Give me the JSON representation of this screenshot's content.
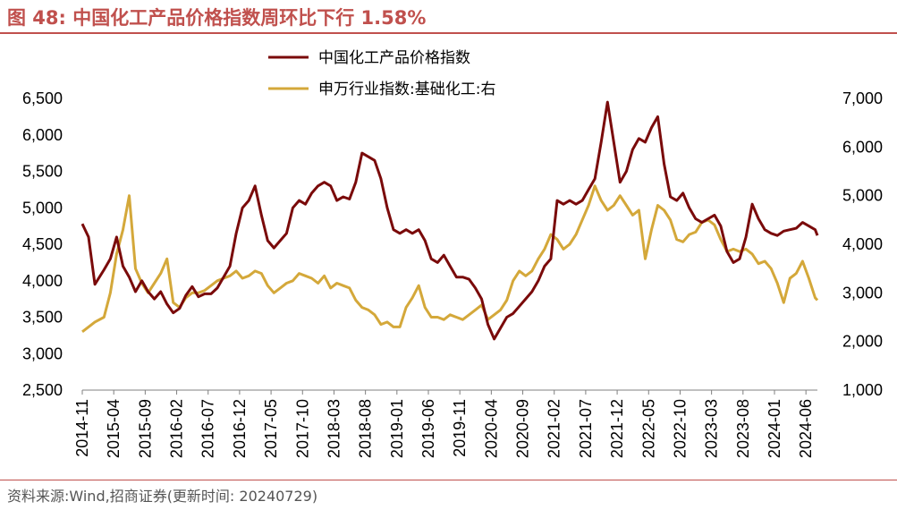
{
  "title": "图 48:  中国化工产品价格指数周环比下行 1.58%",
  "source": "资料来源:Wind,招商证券(更新时间: 20240729)",
  "colors": {
    "accent": "#c0504d",
    "series1": "#7a0a0a",
    "series2": "#d4a83a"
  },
  "chart_data": {
    "type": "line",
    "legend_position": "top-center",
    "grid": false,
    "x_ticks": [
      "2014-11",
      "2015-04",
      "2015-09",
      "2016-02",
      "2016-07",
      "2016-12",
      "2017-05",
      "2017-10",
      "2018-03",
      "2018-08",
      "2019-01",
      "2019-06",
      "2019-11",
      "2020-04",
      "2020-09",
      "2021-02",
      "2021-07",
      "2021-12",
      "2022-05",
      "2022-10",
      "2023-03",
      "2023-08",
      "2024-01",
      "2024-06"
    ],
    "y_left": {
      "ylim": [
        2500,
        6500
      ],
      "ticks": [
        "2,500",
        "3,000",
        "3,500",
        "4,000",
        "4,500",
        "5,000",
        "5,500",
        "6,000",
        "6,500"
      ]
    },
    "y_right": {
      "ylim": [
        1000,
        7000
      ],
      "ticks": [
        "1,000",
        "2,000",
        "3,000",
        "4,000",
        "5,000",
        "6,000",
        "7,000"
      ]
    },
    "series": [
      {
        "name": "中国化工产品价格指数",
        "axis": "left",
        "points": [
          [
            "2014-11-01",
            4780
          ],
          [
            "2014-12-01",
            4600
          ],
          [
            "2015-01-01",
            3950
          ],
          [
            "2015-02-15",
            4150
          ],
          [
            "2015-03-15",
            4300
          ],
          [
            "2015-04-15",
            4600
          ],
          [
            "2015-05-15",
            4200
          ],
          [
            "2015-06-15",
            4050
          ],
          [
            "2015-07-15",
            3850
          ],
          [
            "2015-08-15",
            4000
          ],
          [
            "2015-09-15",
            3850
          ],
          [
            "2015-10-15",
            3750
          ],
          [
            "2015-11-15",
            3850
          ],
          [
            "2015-12-15",
            3680
          ],
          [
            "2016-01-15",
            3560
          ],
          [
            "2016-02-15",
            3620
          ],
          [
            "2016-03-15",
            3800
          ],
          [
            "2016-04-15",
            3920
          ],
          [
            "2016-05-15",
            3780
          ],
          [
            "2016-06-15",
            3820
          ],
          [
            "2016-07-15",
            3820
          ],
          [
            "2016-08-15",
            3900
          ],
          [
            "2016-09-15",
            4050
          ],
          [
            "2016-10-15",
            4200
          ],
          [
            "2016-11-15",
            4650
          ],
          [
            "2016-12-15",
            5000
          ],
          [
            "2017-01-15",
            5100
          ],
          [
            "2017-02-15",
            5300
          ],
          [
            "2017-03-15",
            4900
          ],
          [
            "2017-04-15",
            4550
          ],
          [
            "2017-05-15",
            4450
          ],
          [
            "2017-06-15",
            4550
          ],
          [
            "2017-07-15",
            4650
          ],
          [
            "2017-08-15",
            5000
          ],
          [
            "2017-09-15",
            5100
          ],
          [
            "2017-10-15",
            5050
          ],
          [
            "2017-11-15",
            5200
          ],
          [
            "2017-12-15",
            5300
          ],
          [
            "2018-01-15",
            5350
          ],
          [
            "2018-02-15",
            5300
          ],
          [
            "2018-03-15",
            5100
          ],
          [
            "2018-04-15",
            5150
          ],
          [
            "2018-05-15",
            5120
          ],
          [
            "2018-06-15",
            5350
          ],
          [
            "2018-07-15",
            5750
          ],
          [
            "2018-08-15",
            5700
          ],
          [
            "2018-09-15",
            5650
          ],
          [
            "2018-10-15",
            5400
          ],
          [
            "2018-11-15",
            5000
          ],
          [
            "2018-12-15",
            4700
          ],
          [
            "2019-01-15",
            4650
          ],
          [
            "2019-02-15",
            4700
          ],
          [
            "2019-03-15",
            4650
          ],
          [
            "2019-04-15",
            4700
          ],
          [
            "2019-05-15",
            4550
          ],
          [
            "2019-06-15",
            4300
          ],
          [
            "2019-07-15",
            4250
          ],
          [
            "2019-08-15",
            4350
          ],
          [
            "2019-09-15",
            4200
          ],
          [
            "2019-10-15",
            4050
          ],
          [
            "2019-11-15",
            4050
          ],
          [
            "2019-12-15",
            4020
          ],
          [
            "2020-01-15",
            3900
          ],
          [
            "2020-02-15",
            3750
          ],
          [
            "2020-03-15",
            3400
          ],
          [
            "2020-04-15",
            3200
          ],
          [
            "2020-05-15",
            3350
          ],
          [
            "2020-06-15",
            3500
          ],
          [
            "2020-07-15",
            3550
          ],
          [
            "2020-08-15",
            3650
          ],
          [
            "2020-09-15",
            3750
          ],
          [
            "2020-10-15",
            3850
          ],
          [
            "2020-11-15",
            4000
          ],
          [
            "2020-12-15",
            4200
          ],
          [
            "2021-01-15",
            4300
          ],
          [
            "2021-02-15",
            5100
          ],
          [
            "2021-03-15",
            5050
          ],
          [
            "2021-04-15",
            5100
          ],
          [
            "2021-05-15",
            5050
          ],
          [
            "2021-06-15",
            5100
          ],
          [
            "2021-07-15",
            5250
          ],
          [
            "2021-08-15",
            5400
          ],
          [
            "2021-09-15",
            5900
          ],
          [
            "2021-10-15",
            6450
          ],
          [
            "2021-11-15",
            5900
          ],
          [
            "2021-12-15",
            5350
          ],
          [
            "2022-01-15",
            5500
          ],
          [
            "2022-02-15",
            5800
          ],
          [
            "2022-03-15",
            5950
          ],
          [
            "2022-04-15",
            5900
          ],
          [
            "2022-05-15",
            6100
          ],
          [
            "2022-06-15",
            6250
          ],
          [
            "2022-07-15",
            5600
          ],
          [
            "2022-08-15",
            5150
          ],
          [
            "2022-09-15",
            5100
          ],
          [
            "2022-10-15",
            5200
          ],
          [
            "2022-11-15",
            5000
          ],
          [
            "2022-12-15",
            4850
          ],
          [
            "2023-01-15",
            4800
          ],
          [
            "2023-02-15",
            4850
          ],
          [
            "2023-03-15",
            4900
          ],
          [
            "2023-04-15",
            4750
          ],
          [
            "2023-05-15",
            4400
          ],
          [
            "2023-06-15",
            4250
          ],
          [
            "2023-07-15",
            4300
          ],
          [
            "2023-08-15",
            4600
          ],
          [
            "2023-09-15",
            5050
          ],
          [
            "2023-10-15",
            4850
          ],
          [
            "2023-11-15",
            4700
          ],
          [
            "2023-12-15",
            4650
          ],
          [
            "2024-01-15",
            4620
          ],
          [
            "2024-02-15",
            4680
          ],
          [
            "2024-03-15",
            4700
          ],
          [
            "2024-04-15",
            4720
          ],
          [
            "2024-05-15",
            4800
          ],
          [
            "2024-06-15",
            4750
          ],
          [
            "2024-07-15",
            4700
          ],
          [
            "2024-07-26",
            4620
          ]
        ]
      },
      {
        "name": "申万行业指数:基础化工:右",
        "axis": "right",
        "points": [
          [
            "2014-11-01",
            2200
          ],
          [
            "2014-12-01",
            2300
          ],
          [
            "2015-01-01",
            2400
          ],
          [
            "2015-02-15",
            2500
          ],
          [
            "2015-03-15",
            3000
          ],
          [
            "2015-04-15",
            3800
          ],
          [
            "2015-05-15",
            4300
          ],
          [
            "2015-06-15",
            5000
          ],
          [
            "2015-07-15",
            3500
          ],
          [
            "2015-08-15",
            3200
          ],
          [
            "2015-09-15",
            3000
          ],
          [
            "2015-10-15",
            3200
          ],
          [
            "2015-11-15",
            3400
          ],
          [
            "2015-12-15",
            3700
          ],
          [
            "2016-01-15",
            2800
          ],
          [
            "2016-02-15",
            2700
          ],
          [
            "2016-03-15",
            2900
          ],
          [
            "2016-04-15",
            3000
          ],
          [
            "2016-05-15",
            3000
          ],
          [
            "2016-06-15",
            3050
          ],
          [
            "2016-07-15",
            3150
          ],
          [
            "2016-08-15",
            3250
          ],
          [
            "2016-09-15",
            3300
          ],
          [
            "2016-10-15",
            3350
          ],
          [
            "2016-11-15",
            3450
          ],
          [
            "2016-12-15",
            3300
          ],
          [
            "2017-01-15",
            3350
          ],
          [
            "2017-02-15",
            3450
          ],
          [
            "2017-03-15",
            3400
          ],
          [
            "2017-04-15",
            3150
          ],
          [
            "2017-05-15",
            3000
          ],
          [
            "2017-06-15",
            3100
          ],
          [
            "2017-07-15",
            3200
          ],
          [
            "2017-08-15",
            3250
          ],
          [
            "2017-09-15",
            3400
          ],
          [
            "2017-10-15",
            3350
          ],
          [
            "2017-11-15",
            3300
          ],
          [
            "2017-12-15",
            3200
          ],
          [
            "2018-01-15",
            3350
          ],
          [
            "2018-02-15",
            3100
          ],
          [
            "2018-03-15",
            3200
          ],
          [
            "2018-04-15",
            3150
          ],
          [
            "2018-05-15",
            3100
          ],
          [
            "2018-06-15",
            2850
          ],
          [
            "2018-07-15",
            2700
          ],
          [
            "2018-08-15",
            2650
          ],
          [
            "2018-09-15",
            2550
          ],
          [
            "2018-10-15",
            2350
          ],
          [
            "2018-11-15",
            2400
          ],
          [
            "2018-12-15",
            2300
          ],
          [
            "2019-01-15",
            2300
          ],
          [
            "2019-02-15",
            2700
          ],
          [
            "2019-03-15",
            2900
          ],
          [
            "2019-04-15",
            3150
          ],
          [
            "2019-05-15",
            2700
          ],
          [
            "2019-06-15",
            2500
          ],
          [
            "2019-07-15",
            2500
          ],
          [
            "2019-08-15",
            2450
          ],
          [
            "2019-09-15",
            2550
          ],
          [
            "2019-10-15",
            2500
          ],
          [
            "2019-11-15",
            2450
          ],
          [
            "2019-12-15",
            2550
          ],
          [
            "2020-01-15",
            2650
          ],
          [
            "2020-02-15",
            2750
          ],
          [
            "2020-03-15",
            2450
          ],
          [
            "2020-04-15",
            2550
          ],
          [
            "2020-05-15",
            2650
          ],
          [
            "2020-06-15",
            2850
          ],
          [
            "2020-07-15",
            3250
          ],
          [
            "2020-08-15",
            3450
          ],
          [
            "2020-09-15",
            3350
          ],
          [
            "2020-10-15",
            3450
          ],
          [
            "2020-11-15",
            3700
          ],
          [
            "2020-12-15",
            3900
          ],
          [
            "2021-01-15",
            4200
          ],
          [
            "2021-02-15",
            4100
          ],
          [
            "2021-03-15",
            3900
          ],
          [
            "2021-04-15",
            4000
          ],
          [
            "2021-05-15",
            4200
          ],
          [
            "2021-06-15",
            4500
          ],
          [
            "2021-07-15",
            4800
          ],
          [
            "2021-08-15",
            5200
          ],
          [
            "2021-09-15",
            4900
          ],
          [
            "2021-10-15",
            4700
          ],
          [
            "2021-11-15",
            4800
          ],
          [
            "2021-12-15",
            5000
          ],
          [
            "2022-01-15",
            4800
          ],
          [
            "2022-02-15",
            4600
          ],
          [
            "2022-03-15",
            4700
          ],
          [
            "2022-04-15",
            3700
          ],
          [
            "2022-05-15",
            4300
          ],
          [
            "2022-06-15",
            4800
          ],
          [
            "2022-07-15",
            4700
          ],
          [
            "2022-08-15",
            4500
          ],
          [
            "2022-09-15",
            4100
          ],
          [
            "2022-10-15",
            4050
          ],
          [
            "2022-11-15",
            4200
          ],
          [
            "2022-12-15",
            4250
          ],
          [
            "2023-01-15",
            4450
          ],
          [
            "2023-02-15",
            4500
          ],
          [
            "2023-03-15",
            4400
          ],
          [
            "2023-04-15",
            4100
          ],
          [
            "2023-05-15",
            3850
          ],
          [
            "2023-06-15",
            3900
          ],
          [
            "2023-07-15",
            3850
          ],
          [
            "2023-08-15",
            3900
          ],
          [
            "2023-09-15",
            3800
          ],
          [
            "2023-10-15",
            3600
          ],
          [
            "2023-11-15",
            3650
          ],
          [
            "2023-12-15",
            3500
          ],
          [
            "2024-01-15",
            3200
          ],
          [
            "2024-02-15",
            2800
          ],
          [
            "2024-03-15",
            3300
          ],
          [
            "2024-04-15",
            3400
          ],
          [
            "2024-05-15",
            3650
          ],
          [
            "2024-06-15",
            3300
          ],
          [
            "2024-07-15",
            2900
          ],
          [
            "2024-07-26",
            2850
          ]
        ]
      }
    ]
  }
}
